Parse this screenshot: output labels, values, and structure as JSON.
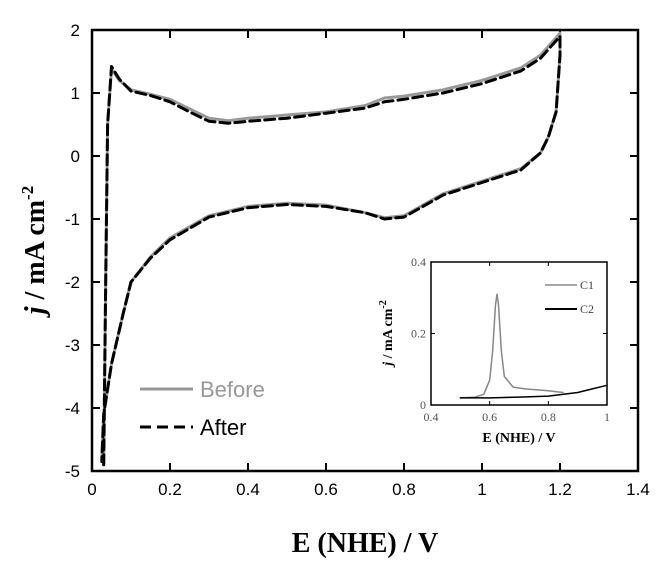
{
  "chart_data": [
    {
      "type": "line",
      "xlabel": "E (NHE) / V",
      "ylabel": "j / mA cm-2",
      "ylabel_parts": {
        "italic": "j",
        "rest": " / mA cm",
        "sup": "-2"
      },
      "xlim": [
        0,
        1.4
      ],
      "ylim": [
        -5,
        2
      ],
      "xticks": [
        "0",
        "0.2",
        "0.4",
        "0.6",
        "0.8",
        "1",
        "1.2",
        "1.4"
      ],
      "yticks": [
        "2",
        "1",
        "0",
        "-1",
        "-2",
        "-3",
        "-4",
        "-5"
      ],
      "legend_position": "bottom-left",
      "series": [
        {
          "name": "Before",
          "color": "#999999",
          "style": "solid",
          "points": [
            [
              0.03,
              -4.9
            ],
            [
              0.035,
              -2.0
            ],
            [
              0.04,
              0.5
            ],
            [
              0.05,
              1.38
            ],
            [
              0.07,
              1.2
            ],
            [
              0.1,
              1.05
            ],
            [
              0.15,
              0.98
            ],
            [
              0.2,
              0.9
            ],
            [
              0.25,
              0.75
            ],
            [
              0.3,
              0.6
            ],
            [
              0.35,
              0.56
            ],
            [
              0.4,
              0.6
            ],
            [
              0.5,
              0.65
            ],
            [
              0.6,
              0.7
            ],
            [
              0.7,
              0.8
            ],
            [
              0.75,
              0.92
            ],
            [
              0.8,
              0.95
            ],
            [
              0.9,
              1.05
            ],
            [
              1.0,
              1.2
            ],
            [
              1.1,
              1.4
            ],
            [
              1.15,
              1.6
            ],
            [
              1.2,
              1.95
            ],
            [
              1.2,
              1.6
            ],
            [
              1.19,
              0.7
            ],
            [
              1.17,
              0.3
            ],
            [
              1.15,
              0.05
            ],
            [
              1.1,
              -0.2
            ],
            [
              1.0,
              -0.4
            ],
            [
              0.9,
              -0.6
            ],
            [
              0.8,
              -0.95
            ],
            [
              0.75,
              -0.98
            ],
            [
              0.7,
              -0.9
            ],
            [
              0.6,
              -0.78
            ],
            [
              0.5,
              -0.75
            ],
            [
              0.4,
              -0.8
            ],
            [
              0.3,
              -0.95
            ],
            [
              0.2,
              -1.3
            ],
            [
              0.15,
              -1.6
            ],
            [
              0.1,
              -2.0
            ],
            [
              0.08,
              -2.5
            ],
            [
              0.05,
              -3.3
            ],
            [
              0.03,
              -4.1
            ],
            [
              0.025,
              -4.8
            ]
          ]
        },
        {
          "name": "After",
          "color": "#000000",
          "style": "dashed",
          "points": [
            [
              0.03,
              -4.9
            ],
            [
              0.035,
              -2.0
            ],
            [
              0.04,
              0.5
            ],
            [
              0.05,
              1.42
            ],
            [
              0.07,
              1.22
            ],
            [
              0.1,
              1.03
            ],
            [
              0.15,
              0.96
            ],
            [
              0.2,
              0.86
            ],
            [
              0.25,
              0.7
            ],
            [
              0.3,
              0.55
            ],
            [
              0.35,
              0.52
            ],
            [
              0.4,
              0.55
            ],
            [
              0.5,
              0.6
            ],
            [
              0.6,
              0.68
            ],
            [
              0.7,
              0.76
            ],
            [
              0.75,
              0.86
            ],
            [
              0.8,
              0.9
            ],
            [
              0.9,
              1.0
            ],
            [
              1.0,
              1.15
            ],
            [
              1.1,
              1.35
            ],
            [
              1.15,
              1.55
            ],
            [
              1.2,
              1.9
            ],
            [
              1.2,
              1.6
            ],
            [
              1.19,
              0.7
            ],
            [
              1.17,
              0.3
            ],
            [
              1.15,
              0.05
            ],
            [
              1.1,
              -0.22
            ],
            [
              1.0,
              -0.42
            ],
            [
              0.9,
              -0.62
            ],
            [
              0.8,
              -0.97
            ],
            [
              0.75,
              -1.0
            ],
            [
              0.7,
              -0.9
            ],
            [
              0.6,
              -0.8
            ],
            [
              0.5,
              -0.77
            ],
            [
              0.4,
              -0.82
            ],
            [
              0.3,
              -0.97
            ],
            [
              0.2,
              -1.33
            ],
            [
              0.15,
              -1.62
            ],
            [
              0.1,
              -2.0
            ],
            [
              0.08,
              -2.5
            ],
            [
              0.05,
              -3.3
            ],
            [
              0.03,
              -4.1
            ],
            [
              0.025,
              -4.85
            ]
          ]
        }
      ]
    },
    {
      "type": "line",
      "xlabel": "E (NHE) / V",
      "ylabel": "j / mA cm-2",
      "ylabel_parts": {
        "italic": "j",
        "rest": " / mA cm",
        "sup": "-2"
      },
      "xlim": [
        0.4,
        1.0
      ],
      "ylim": [
        0,
        0.4
      ],
      "xticks": [
        "0.4",
        "0.6",
        "0.8",
        "1"
      ],
      "yticks": [
        "0.4",
        "0.2",
        "0"
      ],
      "legend_position": "top-right",
      "series": [
        {
          "name": "C1",
          "color": "#888888",
          "style": "solid",
          "points": [
            [
              0.5,
              0.02
            ],
            [
              0.55,
              0.022
            ],
            [
              0.58,
              0.03
            ],
            [
              0.6,
              0.07
            ],
            [
              0.61,
              0.15
            ],
            [
              0.62,
              0.28
            ],
            [
              0.625,
              0.31
            ],
            [
              0.63,
              0.28
            ],
            [
              0.64,
              0.15
            ],
            [
              0.65,
              0.08
            ],
            [
              0.68,
              0.05
            ],
            [
              0.72,
              0.045
            ],
            [
              0.8,
              0.04
            ],
            [
              0.85,
              0.035
            ]
          ]
        },
        {
          "name": "C2",
          "color": "#000000",
          "style": "solid",
          "points": [
            [
              0.5,
              0.02
            ],
            [
              0.6,
              0.02
            ],
            [
              0.7,
              0.022
            ],
            [
              0.8,
              0.025
            ],
            [
              0.9,
              0.035
            ],
            [
              0.95,
              0.045
            ],
            [
              1.0,
              0.055
            ]
          ]
        }
      ]
    }
  ]
}
